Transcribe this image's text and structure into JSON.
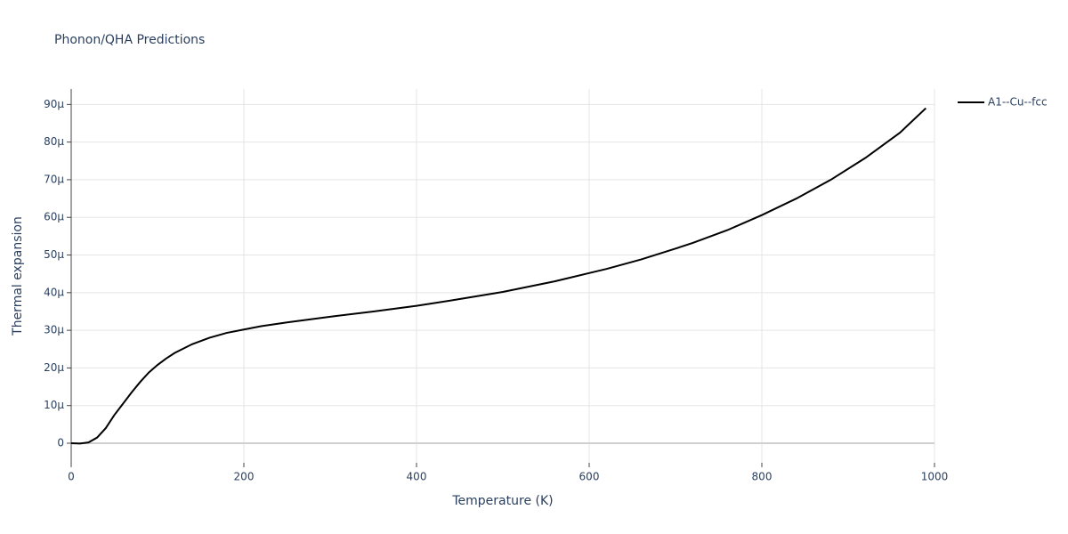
{
  "chart_data": {
    "type": "line",
    "title": "Phonon/QHA Predictions",
    "x_label": "Temperature (K)",
    "y_label": "Thermal expansion",
    "x": [
      0,
      10,
      20,
      30,
      40,
      50,
      60,
      70,
      80,
      90,
      100,
      110,
      120,
      140,
      160,
      180,
      200,
      220,
      250,
      300,
      350,
      400,
      420,
      450,
      500,
      560,
      600,
      620,
      660,
      700,
      720,
      760,
      800,
      840,
      880,
      920,
      960,
      990
    ],
    "series": [
      {
        "name": "A1--Cu--fcc",
        "color": "#000000",
        "values": [
          0,
          -1e-07,
          2e-07,
          1.5e-06,
          4e-06,
          7.5e-06,
          1.05e-05,
          1.35e-05,
          1.63e-05,
          1.88e-05,
          2.08e-05,
          2.25e-05,
          2.4e-05,
          2.63e-05,
          2.8e-05,
          2.93e-05,
          3.02e-05,
          3.11e-05,
          3.21e-05,
          3.36e-05,
          3.5e-05,
          3.65e-05,
          3.72e-05,
          3.83e-05,
          4.02e-05,
          4.3e-05,
          4.52e-05,
          4.63e-05,
          4.88e-05,
          5.17e-05,
          5.32e-05,
          5.66e-05,
          6.06e-05,
          6.5e-05,
          7e-05,
          7.58e-05,
          8.25e-05,
          8.9e-05
        ]
      }
    ],
    "xlim": [
      0,
      1000
    ],
    "xticks": [
      0,
      200,
      400,
      600,
      800,
      1000
    ],
    "ylim": [
      -5.2e-06,
      9.41e-05
    ],
    "yticks": [
      0,
      {
        "value": 1e-05,
        "label": "10µ"
      },
      {
        "value": 2e-05,
        "label": "20µ"
      },
      {
        "value": 3e-05,
        "label": "30µ"
      },
      {
        "value": 4e-05,
        "label": "40µ"
      },
      {
        "value": 5e-05,
        "label": "50µ"
      },
      {
        "value": 6e-05,
        "label": "60µ"
      },
      {
        "value": 7e-05,
        "label": "70µ"
      },
      {
        "value": 8e-05,
        "label": "80µ"
      },
      {
        "value": 9e-05,
        "label": "90µ"
      }
    ],
    "grid": true,
    "legend": "right"
  }
}
